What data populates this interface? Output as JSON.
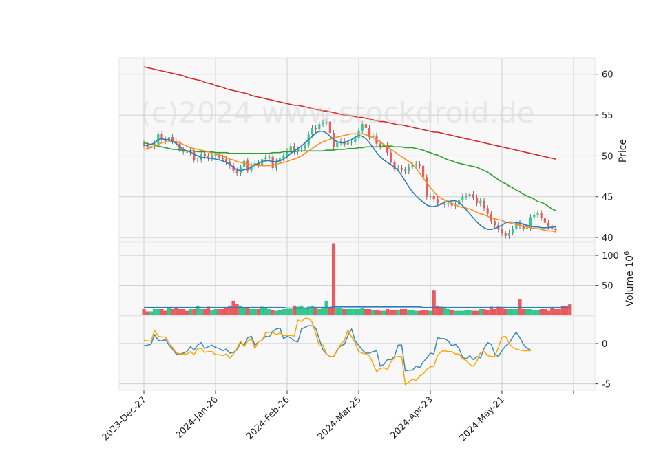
{
  "watermark": "(c)2024 www.stockdroid.de",
  "colors": {
    "panel_bg": "#f8f8f8",
    "grid": "#d0d0d0",
    "up": "#2ecc8f",
    "down": "#f0595e",
    "ma_short": "#2f7bb5",
    "ma_mid": "#ff8c1a",
    "ma_long": "#2ca02c",
    "ma_200": "#d62728",
    "vol_ma": "#2f7bb5",
    "osc_1": "#3f88b5",
    "osc_2": "#ffa500"
  },
  "chart_data": [
    {
      "type": "candlestick",
      "panel": "price",
      "ylabel": "Price",
      "ylim": [
        39.5,
        62
      ],
      "yticks": [
        40,
        45,
        50,
        55,
        60
      ],
      "x_range": [
        0,
        121
      ],
      "grid": true,
      "xtick_labels": [
        {
          "index": 0,
          "label": "2023-Dec-27"
        },
        {
          "index": 20,
          "label": "2024-Jan-26"
        },
        {
          "index": 40,
          "label": "2024-Feb-26"
        },
        {
          "index": 60,
          "label": "2024-Mar-25"
        },
        {
          "index": 80,
          "label": "2024-Apr-23"
        },
        {
          "index": 100,
          "label": "2024-May-21"
        },
        {
          "index": 120,
          "label": ""
        }
      ],
      "close": [
        51.3,
        51.1,
        51.2,
        51.5,
        52.7,
        52.0,
        51.8,
        52.3,
        51.8,
        51.5,
        50.8,
        50.5,
        50.4,
        50.6,
        49.5,
        49.5,
        50.2,
        50.0,
        49.7,
        50.1,
        50.1,
        49.8,
        49.6,
        49.3,
        48.8,
        48.2,
        47.9,
        48.6,
        49.4,
        48.2,
        48.8,
        49.1,
        48.9,
        49.6,
        49.8,
        49.9,
        48.5,
        49.3,
        49.7,
        50.0,
        50.6,
        51.2,
        50.5,
        50.8,
        50.9,
        51.3,
        52.6,
        53.4,
        53.2,
        53.9,
        54.1,
        54.2,
        52.8,
        51.1,
        51.6,
        51.8,
        51.4,
        51.6,
        51.7,
        52.2,
        53.1,
        53.9,
        53.4,
        52.3,
        52.5,
        51.5,
        51.1,
        51.3,
        50.4,
        49.2,
        48.4,
        48.5,
        48.3,
        48.1,
        48.7,
        48.9,
        49.0,
        48.8,
        47.4,
        45.0,
        45.1,
        44.7,
        44.2,
        44.0,
        44.1,
        44.2,
        43.9,
        44.0,
        44.6,
        45.0,
        45.1,
        45.3,
        44.9,
        44.2,
        44.5,
        43.6,
        42.9,
        42.0,
        41.5,
        41.0,
        40.5,
        40.2,
        40.6,
        41.1,
        41.8,
        41.4,
        41.1,
        41.2,
        42.5,
        42.8,
        43.0,
        42.4,
        41.8,
        41.3,
        41.1,
        40.9
      ],
      "series": [
        {
          "name": "",
          "color": "#d62728",
          "values": [
            60.9,
            60.8,
            60.7,
            60.6,
            60.5,
            60.4,
            60.3,
            60.2,
            60.1,
            60.0,
            59.9,
            59.8,
            59.6,
            59.5,
            59.4,
            59.3,
            59.2,
            59.0,
            58.9,
            58.8,
            58.6,
            58.5,
            58.4,
            58.2,
            58.1,
            58.0,
            57.9,
            57.8,
            57.7,
            57.6,
            57.4,
            57.3,
            57.2,
            57.1,
            57.0,
            56.9,
            56.8,
            56.7,
            56.6,
            56.5,
            56.4,
            56.3,
            56.2,
            56.2,
            56.1,
            56.0,
            55.9,
            55.8,
            55.7,
            55.6,
            55.5,
            55.5,
            55.4,
            55.3,
            55.2,
            55.1,
            55.0,
            55.0,
            54.9,
            54.8,
            54.7,
            54.7,
            54.6,
            54.5,
            54.4,
            54.3,
            54.2,
            54.2,
            54.1,
            54.0,
            53.9,
            53.8,
            53.8,
            53.7,
            53.6,
            53.5,
            53.4,
            53.3,
            53.2,
            53.1,
            53.0,
            52.9,
            52.9,
            52.8,
            52.7,
            52.6,
            52.5,
            52.4,
            52.3,
            52.2,
            52.1,
            52.0,
            51.9,
            51.8,
            51.7,
            51.6,
            51.5,
            51.4,
            51.3,
            51.2,
            51.1,
            51.0,
            50.9,
            50.8,
            50.7,
            50.6,
            50.5,
            50.4,
            50.3,
            50.2,
            50.1,
            50.0,
            49.9,
            49.8,
            49.7,
            49.6
          ]
        },
        {
          "name": "",
          "color": "#2ca02c",
          "values": [
            51.6,
            51.5,
            51.4,
            51.3,
            51.2,
            51.1,
            51.0,
            50.9,
            50.8,
            50.8,
            50.7,
            50.7,
            50.6,
            50.6,
            50.6,
            50.5,
            50.5,
            50.5,
            50.5,
            50.5,
            50.4,
            50.4,
            50.4,
            50.4,
            50.3,
            50.3,
            50.3,
            50.3,
            50.3,
            50.3,
            50.3,
            50.3,
            50.3,
            50.3,
            50.3,
            50.3,
            50.4,
            50.4,
            50.4,
            50.5,
            50.5,
            50.5,
            50.5,
            50.6,
            50.6,
            50.6,
            50.6,
            50.6,
            50.6,
            50.6,
            50.6,
            50.7,
            50.7,
            50.7,
            50.8,
            50.8,
            50.8,
            50.9,
            50.9,
            50.9,
            51.0,
            51.0,
            51.1,
            51.1,
            51.1,
            51.1,
            51.1,
            51.2,
            51.2,
            51.2,
            51.1,
            51.1,
            51.1,
            51.0,
            51.0,
            51.0,
            50.9,
            50.8,
            50.7,
            50.5,
            50.4,
            50.2,
            50.1,
            49.9,
            49.7,
            49.5,
            49.4,
            49.2,
            49.1,
            49.0,
            48.9,
            48.8,
            48.7,
            48.6,
            48.4,
            48.2,
            48.0,
            47.7,
            47.4,
            47.1,
            46.8,
            46.6,
            46.3,
            46.1,
            45.8,
            45.6,
            45.3,
            45.1,
            44.9,
            44.7,
            44.4,
            44.3,
            44.1,
            43.8,
            43.5,
            43.3
          ]
        },
        {
          "name": "",
          "color": "#ff8c1a",
          "values": [
            50.8,
            50.9,
            51.0,
            51.2,
            51.4,
            51.6,
            51.7,
            51.7,
            51.8,
            51.7,
            51.6,
            51.4,
            51.2,
            51.0,
            50.9,
            50.8,
            50.7,
            50.6,
            50.5,
            50.3,
            50.2,
            50.1,
            50.0,
            49.8,
            49.6,
            49.5,
            49.3,
            49.2,
            49.1,
            49.0,
            48.9,
            48.9,
            48.8,
            48.8,
            48.8,
            48.8,
            48.9,
            49.0,
            49.1,
            49.2,
            49.3,
            49.5,
            49.6,
            49.8,
            50.0,
            50.3,
            50.6,
            50.9,
            51.2,
            51.5,
            51.7,
            51.9,
            52.0,
            52.2,
            52.3,
            52.4,
            52.5,
            52.6,
            52.7,
            52.7,
            52.7,
            52.7,
            52.6,
            52.4,
            52.2,
            52.0,
            51.7,
            51.4,
            51.1,
            50.8,
            50.5,
            50.2,
            49.9,
            49.6,
            49.3,
            49.0,
            48.5,
            47.9,
            47.3,
            46.7,
            46.1,
            45.6,
            45.1,
            44.8,
            44.6,
            44.4,
            44.2,
            44.0,
            43.8,
            43.7,
            43.6,
            43.5,
            43.3,
            43.1,
            42.9,
            42.8,
            42.6,
            42.4,
            42.3,
            42.2,
            42.1,
            41.9,
            41.8,
            41.7,
            41.6,
            41.5,
            41.4,
            41.3,
            41.2,
            41.1,
            41.1,
            41.0,
            40.9,
            40.8,
            40.8,
            40.7
          ]
        },
        {
          "name": "",
          "color": "#2f7bb5",
          "values": [
            51.3,
            51.3,
            51.4,
            51.6,
            52.0,
            52.1,
            52.0,
            52.0,
            51.8,
            51.5,
            51.1,
            50.8,
            50.6,
            50.5,
            50.2,
            50.0,
            49.8,
            49.8,
            49.7,
            49.7,
            49.6,
            49.5,
            49.4,
            49.2,
            49.0,
            48.6,
            48.3,
            48.2,
            48.3,
            48.4,
            48.6,
            48.9,
            49.1,
            49.3,
            49.4,
            49.4,
            49.3,
            49.3,
            49.4,
            49.6,
            49.9,
            50.3,
            50.6,
            50.9,
            51.2,
            51.6,
            52.0,
            52.4,
            52.8,
            53.0,
            53.0,
            52.8,
            52.4,
            52.0,
            51.7,
            51.6,
            51.6,
            51.8,
            52.0,
            52.3,
            52.5,
            52.4,
            52.1,
            51.6,
            51.0,
            50.4,
            49.9,
            49.5,
            49.2,
            48.9,
            48.6,
            48.2,
            47.6,
            46.9,
            46.2,
            45.6,
            45.1,
            44.7,
            44.3,
            44.0,
            43.8,
            43.8,
            43.9,
            44.1,
            44.3,
            44.4,
            44.5,
            44.5,
            44.3,
            43.9,
            43.4,
            42.9,
            42.4,
            41.9,
            41.5,
            41.2,
            41.0,
            41.0,
            41.1,
            41.3,
            41.5,
            41.8,
            41.9,
            41.9,
            41.8,
            41.8,
            41.6,
            41.5,
            41.4,
            41.3,
            41.3,
            41.2,
            41.2,
            41.2,
            41.3,
            41.3
          ]
        }
      ]
    },
    {
      "type": "bar",
      "panel": "volume",
      "ylabel": "Volume  10",
      "ylabel_exponent": "6",
      "ylim": [
        0,
        122
      ],
      "yticks": [
        50,
        100
      ],
      "values": [
        10,
        6,
        6,
        10,
        10,
        10,
        7,
        12,
        10,
        12,
        10,
        10,
        7,
        10,
        10,
        16,
        10,
        10,
        14,
        8,
        10,
        10,
        10,
        12,
        16,
        24,
        18,
        16,
        12,
        12,
        10,
        10,
        10,
        14,
        12,
        10,
        8,
        7,
        8,
        10,
        10,
        10,
        16,
        14,
        16,
        12,
        14,
        16,
        12,
        10,
        12,
        24,
        12,
        120,
        12,
        12,
        10,
        10,
        10,
        10,
        10,
        12,
        10,
        10,
        8,
        8,
        7,
        7,
        10,
        8,
        8,
        8,
        10,
        10,
        8,
        8,
        7,
        7,
        8,
        8,
        7,
        42,
        16,
        14,
        12,
        10,
        8,
        7,
        7,
        7,
        8,
        8,
        7,
        7,
        10,
        10,
        8,
        14,
        10,
        14,
        12,
        10,
        10,
        10,
        10,
        26,
        10,
        10,
        10,
        8,
        8,
        10,
        10,
        7,
        12,
        10,
        10,
        16,
        16,
        18
      ],
      "series": [
        {
          "name": "",
          "color": "#2f7bb5",
          "values": [
            13,
            13,
            13,
            13,
            13,
            13,
            13,
            13,
            13,
            13,
            13,
            13,
            13,
            13,
            13,
            13,
            13,
            13,
            13,
            13,
            13,
            13,
            13,
            13,
            13,
            13,
            13,
            13,
            13,
            13,
            13,
            13,
            13,
            13,
            13,
            13,
            13,
            13,
            13,
            13,
            12,
            12,
            12,
            12,
            12,
            12,
            12,
            13,
            13,
            13,
            13,
            13,
            13,
            14,
            14,
            14,
            14,
            14,
            14,
            14,
            14,
            14,
            14,
            14,
            14,
            14,
            14,
            14,
            14,
            14,
            14,
            14,
            14,
            14,
            14,
            14,
            14,
            14,
            13,
            13,
            13,
            13,
            13,
            13,
            13,
            13,
            13,
            13,
            13,
            13,
            13,
            13,
            13,
            13,
            13,
            13,
            13,
            13,
            13,
            13,
            13,
            13,
            13,
            13,
            13,
            13,
            13,
            13,
            13,
            13,
            13,
            13,
            13,
            13,
            13,
            13,
            13,
            13,
            13,
            13
          ]
        }
      ]
    },
    {
      "type": "line",
      "panel": "oscillator",
      "ylim": [
        -5.8,
        3.4
      ],
      "yticks": [
        -5,
        0
      ],
      "grid": true,
      "series": [
        {
          "name": "",
          "color": "#3f88b5",
          "values": [
            -0.3,
            -0.2,
            -0.1,
            1.1,
            0.4,
            0.3,
            0.5,
            -0.2,
            -0.7,
            -1.3,
            -1.3,
            -1.2,
            -1.0,
            -0.4,
            -0.8,
            -0.2,
            0.1,
            -0.6,
            -0.4,
            -0.2,
            -0.5,
            -0.6,
            -0.9,
            -0.7,
            -1.2,
            -1.1,
            -0.8,
            0.1,
            -0.2,
            0.7,
            0.9,
            -0.2,
            0.2,
            0.4,
            0.9,
            0.8,
            1.5,
            1.8,
            1.9,
            0.6,
            0.9,
            0.7,
            0.3,
            0.2,
            1.8,
            2.0,
            2.2,
            2.2,
            1.9,
            0.5,
            -0.8,
            -1.3,
            -1.6,
            -1.6,
            -0.8,
            -0.3,
            -0.1,
            1.0,
            1.8,
            0.3,
            -0.2,
            -0.8,
            -1.2,
            -1.2,
            -1.0,
            -0.9,
            -2.8,
            -2.6,
            -2.0,
            -2.0,
            -1.6,
            -0.2,
            -0.2,
            -3.4,
            -3.3,
            -3.3,
            -2.8,
            -3.0,
            -2.3,
            -1.8,
            -1.2,
            -1.3,
            0.7,
            0.6,
            0.6,
            0.3,
            -0.3,
            -0.1,
            -0.6,
            -1.7,
            -1.9,
            -1.5,
            -2.0,
            -1.6,
            -1.8,
            -0.6,
            0.1,
            -0.1,
            -1.3,
            -1.6,
            -0.9,
            -0.3,
            0.0,
            0.8,
            1.4,
            0.7,
            -0.1,
            -0.6,
            -0.8
          ]
        },
        {
          "name": "",
          "color": "#ffa500",
          "values": [
            0.4,
            0.3,
            0.3,
            1.6,
            0.9,
            0.8,
            0.8,
            0.1,
            -0.5,
            -1.1,
            -1.3,
            -1.3,
            -1.3,
            -1.0,
            -1.4,
            -0.6,
            -0.6,
            -1.1,
            -1.0,
            -1.0,
            -1.4,
            -1.4,
            -1.5,
            -1.3,
            -1.8,
            -1.3,
            -0.6,
            0.3,
            -0.4,
            0.3,
            0.6,
            -0.6,
            0.2,
            0.4,
            1.3,
            1.4,
            1.4,
            1.1,
            1.3,
            1.0,
            1.0,
            1.0,
            0.9,
            2.9,
            2.7,
            3.1,
            3.1,
            2.6,
            1.2,
            -0.3,
            -0.2,
            -1.3,
            -1.6,
            -1.6,
            -0.9,
            -0.1,
            0.4,
            1.7,
            0.8,
            0.1,
            -1.0,
            -1.2,
            -1.3,
            -1.5,
            -2.5,
            -3.5,
            -3.1,
            -3.0,
            -3.2,
            -2.3,
            -1.7,
            -1.6,
            -1.6,
            -5.1,
            -4.8,
            -4.4,
            -4.6,
            -4.0,
            -3.8,
            -3.2,
            -2.9,
            -2.8,
            -1.5,
            -1.0,
            -0.9,
            -1.0,
            -1.0,
            -1.3,
            -1.3,
            -1.9,
            -2.1,
            -2.6,
            -2.8,
            -2.2,
            -1.1,
            -1.0,
            -1.5,
            -1.6,
            -1.6,
            -0.5,
            0.8,
            0.9,
            0.0,
            -0.5,
            -0.7,
            -0.8,
            -0.9,
            -0.9,
            -0.9
          ]
        }
      ]
    }
  ]
}
